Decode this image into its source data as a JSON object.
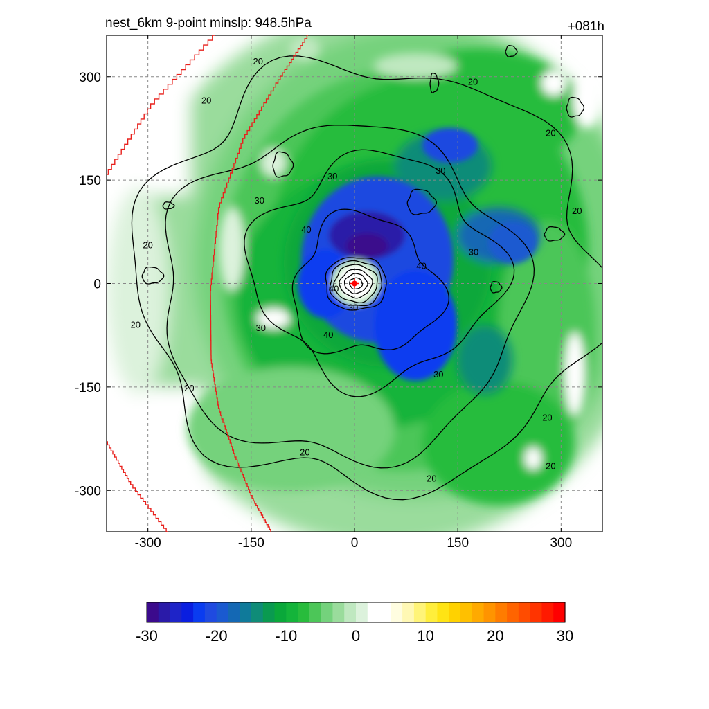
{
  "title": "nest_6km  9-point minslp: 948.5hPa",
  "forecast_hour": "+081h",
  "chart_data": {
    "type": "heatmap",
    "xlim": [
      -360,
      360
    ],
    "ylim": [
      -360,
      360
    ],
    "x_ticks": [
      -300,
      -150,
      0,
      150,
      300
    ],
    "y_ticks": [
      -300,
      -150,
      0,
      150,
      300
    ],
    "x_tick_labels": [
      "-300",
      "-150",
      "0",
      "150",
      "300"
    ],
    "y_tick_labels": [
      "-300",
      "-150",
      "0",
      "150",
      "300"
    ],
    "grid": true,
    "storm_center": [
      0,
      0
    ],
    "colorbar": {
      "min": -30,
      "max": 30,
      "tick_values": [
        -30,
        -20,
        -10,
        0,
        10,
        20,
        30
      ],
      "tick_labels": [
        "-30",
        "-20",
        "-10",
        "0",
        "10",
        "20",
        "30"
      ],
      "colors": [
        "#3b0a8c",
        "#2a1aa8",
        "#1e24c8",
        "#0a1ee0",
        "#0a3cf0",
        "#1f4ae0",
        "#1a5ad0",
        "#1468b4",
        "#0f7a9a",
        "#0f8c78",
        "#0a9a50",
        "#0aa83a",
        "#14b43a",
        "#28bc3c",
        "#4cc658",
        "#74d27c",
        "#9adc9c",
        "#bfe8c0",
        "#dcf2dc",
        "#ffffff",
        "#ffffff",
        "#fffde0",
        "#fff8b4",
        "#fff478",
        "#ffee3c",
        "#ffe414",
        "#ffd200",
        "#ffc000",
        "#ffaa00",
        "#ff9400",
        "#ff7c00",
        "#ff6400",
        "#ff4c00",
        "#ff3400",
        "#ff1a00",
        "#ff0000"
      ]
    },
    "contour_labels": [
      {
        "text": "20",
        "x": -215,
        "y": 265
      },
      {
        "text": "20",
        "x": -300,
        "y": 55
      },
      {
        "text": "20",
        "x": -318,
        "y": -60
      },
      {
        "text": "20",
        "x": -240,
        "y": -152
      },
      {
        "text": "20",
        "x": -72,
        "y": -245
      },
      {
        "text": "20",
        "x": 112,
        "y": -283
      },
      {
        "text": "20",
        "x": 280,
        "y": -195
      },
      {
        "text": "20",
        "x": 285,
        "y": -265
      },
      {
        "text": "20",
        "x": 172,
        "y": 292
      },
      {
        "text": "20",
        "x": 285,
        "y": 218
      },
      {
        "text": "20",
        "x": 323,
        "y": 105
      },
      {
        "text": "20",
        "x": -140,
        "y": 322
      },
      {
        "text": "30",
        "x": -138,
        "y": 120
      },
      {
        "text": "30",
        "x": -136,
        "y": -65
      },
      {
        "text": "30",
        "x": -32,
        "y": 155
      },
      {
        "text": "30",
        "x": 125,
        "y": 163
      },
      {
        "text": "30",
        "x": 173,
        "y": 45
      },
      {
        "text": "30",
        "x": 122,
        "y": -132
      },
      {
        "text": "40",
        "x": -70,
        "y": 78
      },
      {
        "text": "40",
        "x": -38,
        "y": -75
      },
      {
        "text": "40",
        "x": 97,
        "y": 25
      },
      {
        "text": "40",
        "x": -30,
        "y": -8
      },
      {
        "text": "30",
        "x": -2,
        "y": -35
      }
    ]
  }
}
